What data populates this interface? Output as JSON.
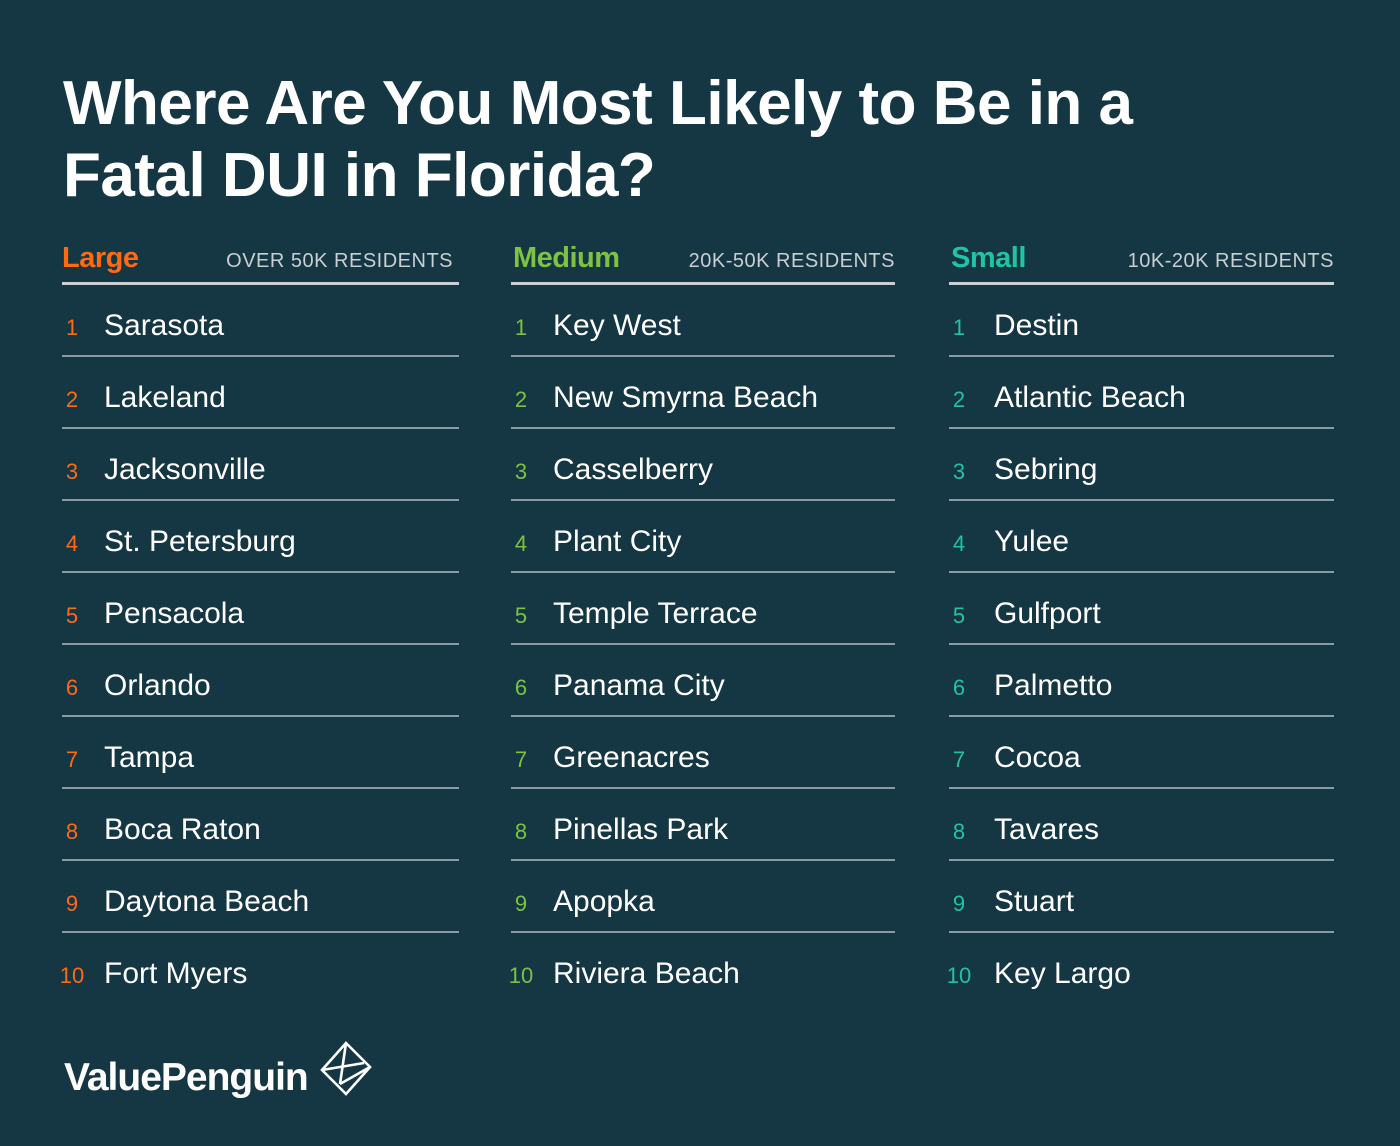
{
  "title": "Where Are You Most Likely to Be in a Fatal DUI in Florida?",
  "colors": {
    "background": "#153643",
    "large": "#ff6a13",
    "medium": "#7dc242",
    "small": "#20c3a6",
    "divider": "#8a9aa2"
  },
  "brand": {
    "name": "ValuePenguin",
    "logo_icon": "valuepenguin-logo-icon"
  },
  "categories": [
    {
      "name": "Large",
      "range": "OVER 50K RESIDENTS",
      "cities": [
        {
          "rank": "1",
          "city": "Sarasota"
        },
        {
          "rank": "2",
          "city": "Lakeland"
        },
        {
          "rank": "3",
          "city": "Jacksonville"
        },
        {
          "rank": "4",
          "city": "St. Petersburg"
        },
        {
          "rank": "5",
          "city": "Pensacola"
        },
        {
          "rank": "6",
          "city": "Orlando"
        },
        {
          "rank": "7",
          "city": "Tampa"
        },
        {
          "rank": "8",
          "city": "Boca Raton"
        },
        {
          "rank": "9",
          "city": "Daytona Beach"
        },
        {
          "rank": "10",
          "city": "Fort Myers"
        }
      ]
    },
    {
      "name": "Medium",
      "range": "20K-50K RESIDENTS",
      "cities": [
        {
          "rank": "1",
          "city": "Key West"
        },
        {
          "rank": "2",
          "city": "New Smyrna Beach"
        },
        {
          "rank": "3",
          "city": "Casselberry"
        },
        {
          "rank": "4",
          "city": "Plant City"
        },
        {
          "rank": "5",
          "city": "Temple Terrace"
        },
        {
          "rank": "6",
          "city": "Panama City"
        },
        {
          "rank": "7",
          "city": "Greenacres"
        },
        {
          "rank": "8",
          "city": "Pinellas Park"
        },
        {
          "rank": "9",
          "city": "Apopka"
        },
        {
          "rank": "10",
          "city": "Riviera Beach"
        }
      ]
    },
    {
      "name": "Small",
      "range": "10K-20K RESIDENTS",
      "cities": [
        {
          "rank": "1",
          "city": "Destin"
        },
        {
          "rank": "2",
          "city": "Atlantic Beach"
        },
        {
          "rank": "3",
          "city": "Sebring"
        },
        {
          "rank": "4",
          "city": "Yulee"
        },
        {
          "rank": "5",
          "city": "Gulfport"
        },
        {
          "rank": "6",
          "city": "Palmetto"
        },
        {
          "rank": "7",
          "city": "Cocoa"
        },
        {
          "rank": "8",
          "city": "Tavares"
        },
        {
          "rank": "9",
          "city": "Stuart"
        },
        {
          "rank": "10",
          "city": "Key Largo"
        }
      ]
    }
  ]
}
